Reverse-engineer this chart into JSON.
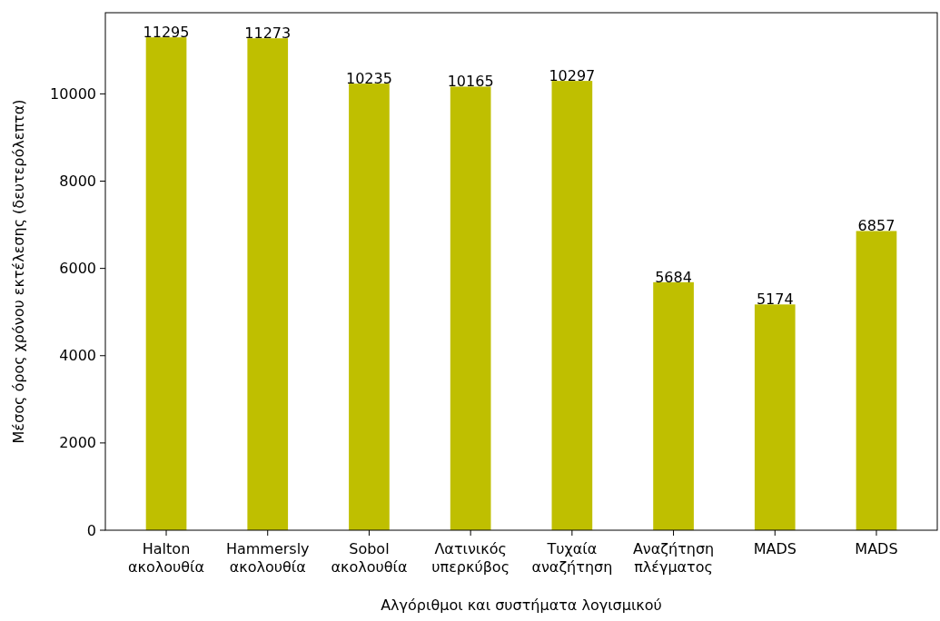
{
  "chart_data": {
    "type": "bar",
    "xlabel": "Αλγόριθμοι και συστήματα λογισμικού",
    "ylabel": "Μέσος όρος χρόνου εκτέλεσης (δευτερόλεπτα)",
    "categories": [
      "Halton ακολουθία",
      "Hammersly ακολουθία",
      "Sobol ακολουθία",
      "Λατινικός υπερκύβος",
      "Τυχαία αναζήτηση",
      "Αναζήτηση πλέγματος",
      "MADS",
      "MADS"
    ],
    "values": [
      11295,
      11273,
      10235,
      10165,
      10297,
      5684,
      5174,
      6857
    ],
    "color": "#bfbf00",
    "data_labels": true,
    "ylim": [
      0,
      11860
    ],
    "yticks": [
      0,
      2000,
      4000,
      6000,
      8000,
      10000
    ],
    "grid": false
  }
}
